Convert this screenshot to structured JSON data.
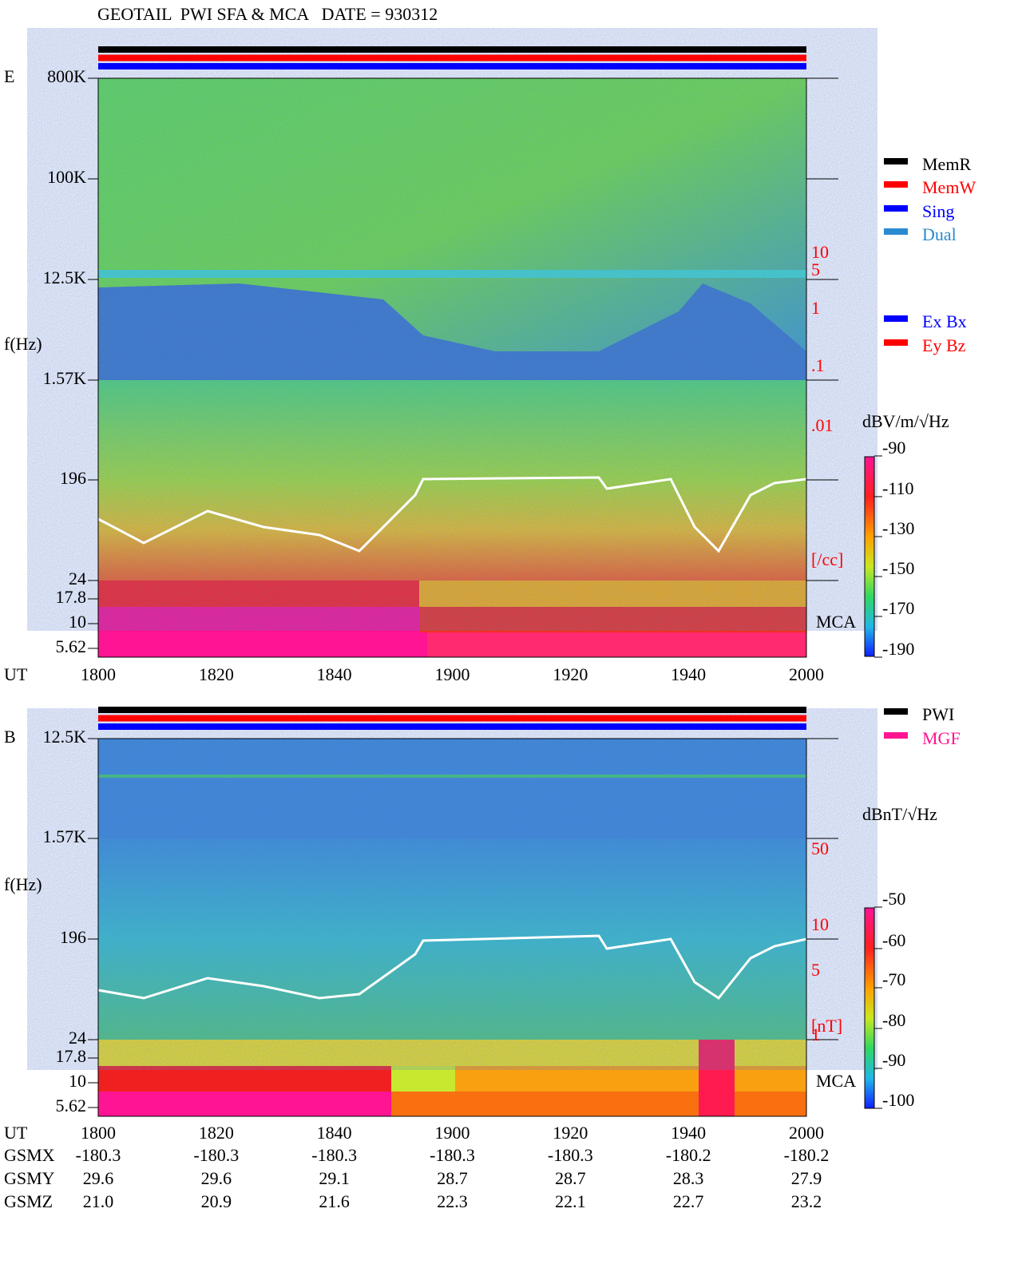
{
  "title": "GEOTAIL  PWI SFA & MCA   DATE = 930312",
  "panels": [
    {
      "component": "E",
      "y_axis_label": "f(Hz)",
      "freq_labels": [
        "800K",
        "100K",
        "12.5K",
        "1.57K",
        "196",
        "24",
        "17.8",
        "10",
        "5.62"
      ],
      "time_axis_label": "UT",
      "time_labels": [
        "1800",
        "1820",
        "1840",
        "1900",
        "1920",
        "1940",
        "2000"
      ],
      "density_labels": [
        "10",
        "5",
        "1",
        ".1",
        ".01",
        "[/cc]"
      ],
      "mca_label": "MCA",
      "legends": [
        [
          {
            "label": "MemR",
            "color": "#000000"
          },
          {
            "label": "MemW",
            "color": "#ff0000"
          },
          {
            "label": "Sing",
            "color": "#0000ff"
          },
          {
            "label": "Dual",
            "color": "#2a8ad0"
          }
        ],
        [
          {
            "label": "Ex Bx",
            "color": "#0000ff"
          },
          {
            "label": "Ey Bz",
            "color": "#ff0000"
          }
        ]
      ],
      "colorbar": {
        "unit": "dBV/m/√Hz",
        "ticks": [
          "-90",
          "-110",
          "-130",
          "-150",
          "-170",
          "-190"
        ]
      }
    },
    {
      "component": "B",
      "y_axis_label": "f(Hz)",
      "freq_labels": [
        "12.5K",
        "1.57K",
        "196",
        "24",
        "17.8",
        "10",
        "5.62"
      ],
      "time_axis_label": "UT",
      "time_labels": [
        "1800",
        "1820",
        "1840",
        "1900",
        "1920",
        "1940",
        "2000"
      ],
      "density_labels": [
        "50",
        "10",
        "5",
        "1",
        "[nT]"
      ],
      "mca_label": "MCA",
      "legends": [
        [
          {
            "label": "PWI",
            "color": "#000000"
          },
          {
            "label": "MGF",
            "color": "#ff1493"
          }
        ]
      ],
      "colorbar": {
        "unit": "dBnT/√Hz",
        "ticks": [
          "-50",
          "-60",
          "-70",
          "-80",
          "-90",
          "-100"
        ]
      }
    }
  ],
  "orbit": {
    "rows": [
      {
        "label": "GSMX",
        "values": [
          "-180.3",
          "-180.3",
          "-180.3",
          "-180.3",
          "-180.3",
          "-180.2",
          "-180.2"
        ]
      },
      {
        "label": "GSMY",
        "values": [
          "29.6",
          "29.6",
          "29.1",
          "28.7",
          "28.7",
          "28.3",
          "27.9"
        ]
      },
      {
        "label": "GSMZ",
        "values": [
          "21.0",
          "20.9",
          "21.6",
          "22.3",
          "22.1",
          "22.7",
          "23.2"
        ]
      }
    ]
  }
}
